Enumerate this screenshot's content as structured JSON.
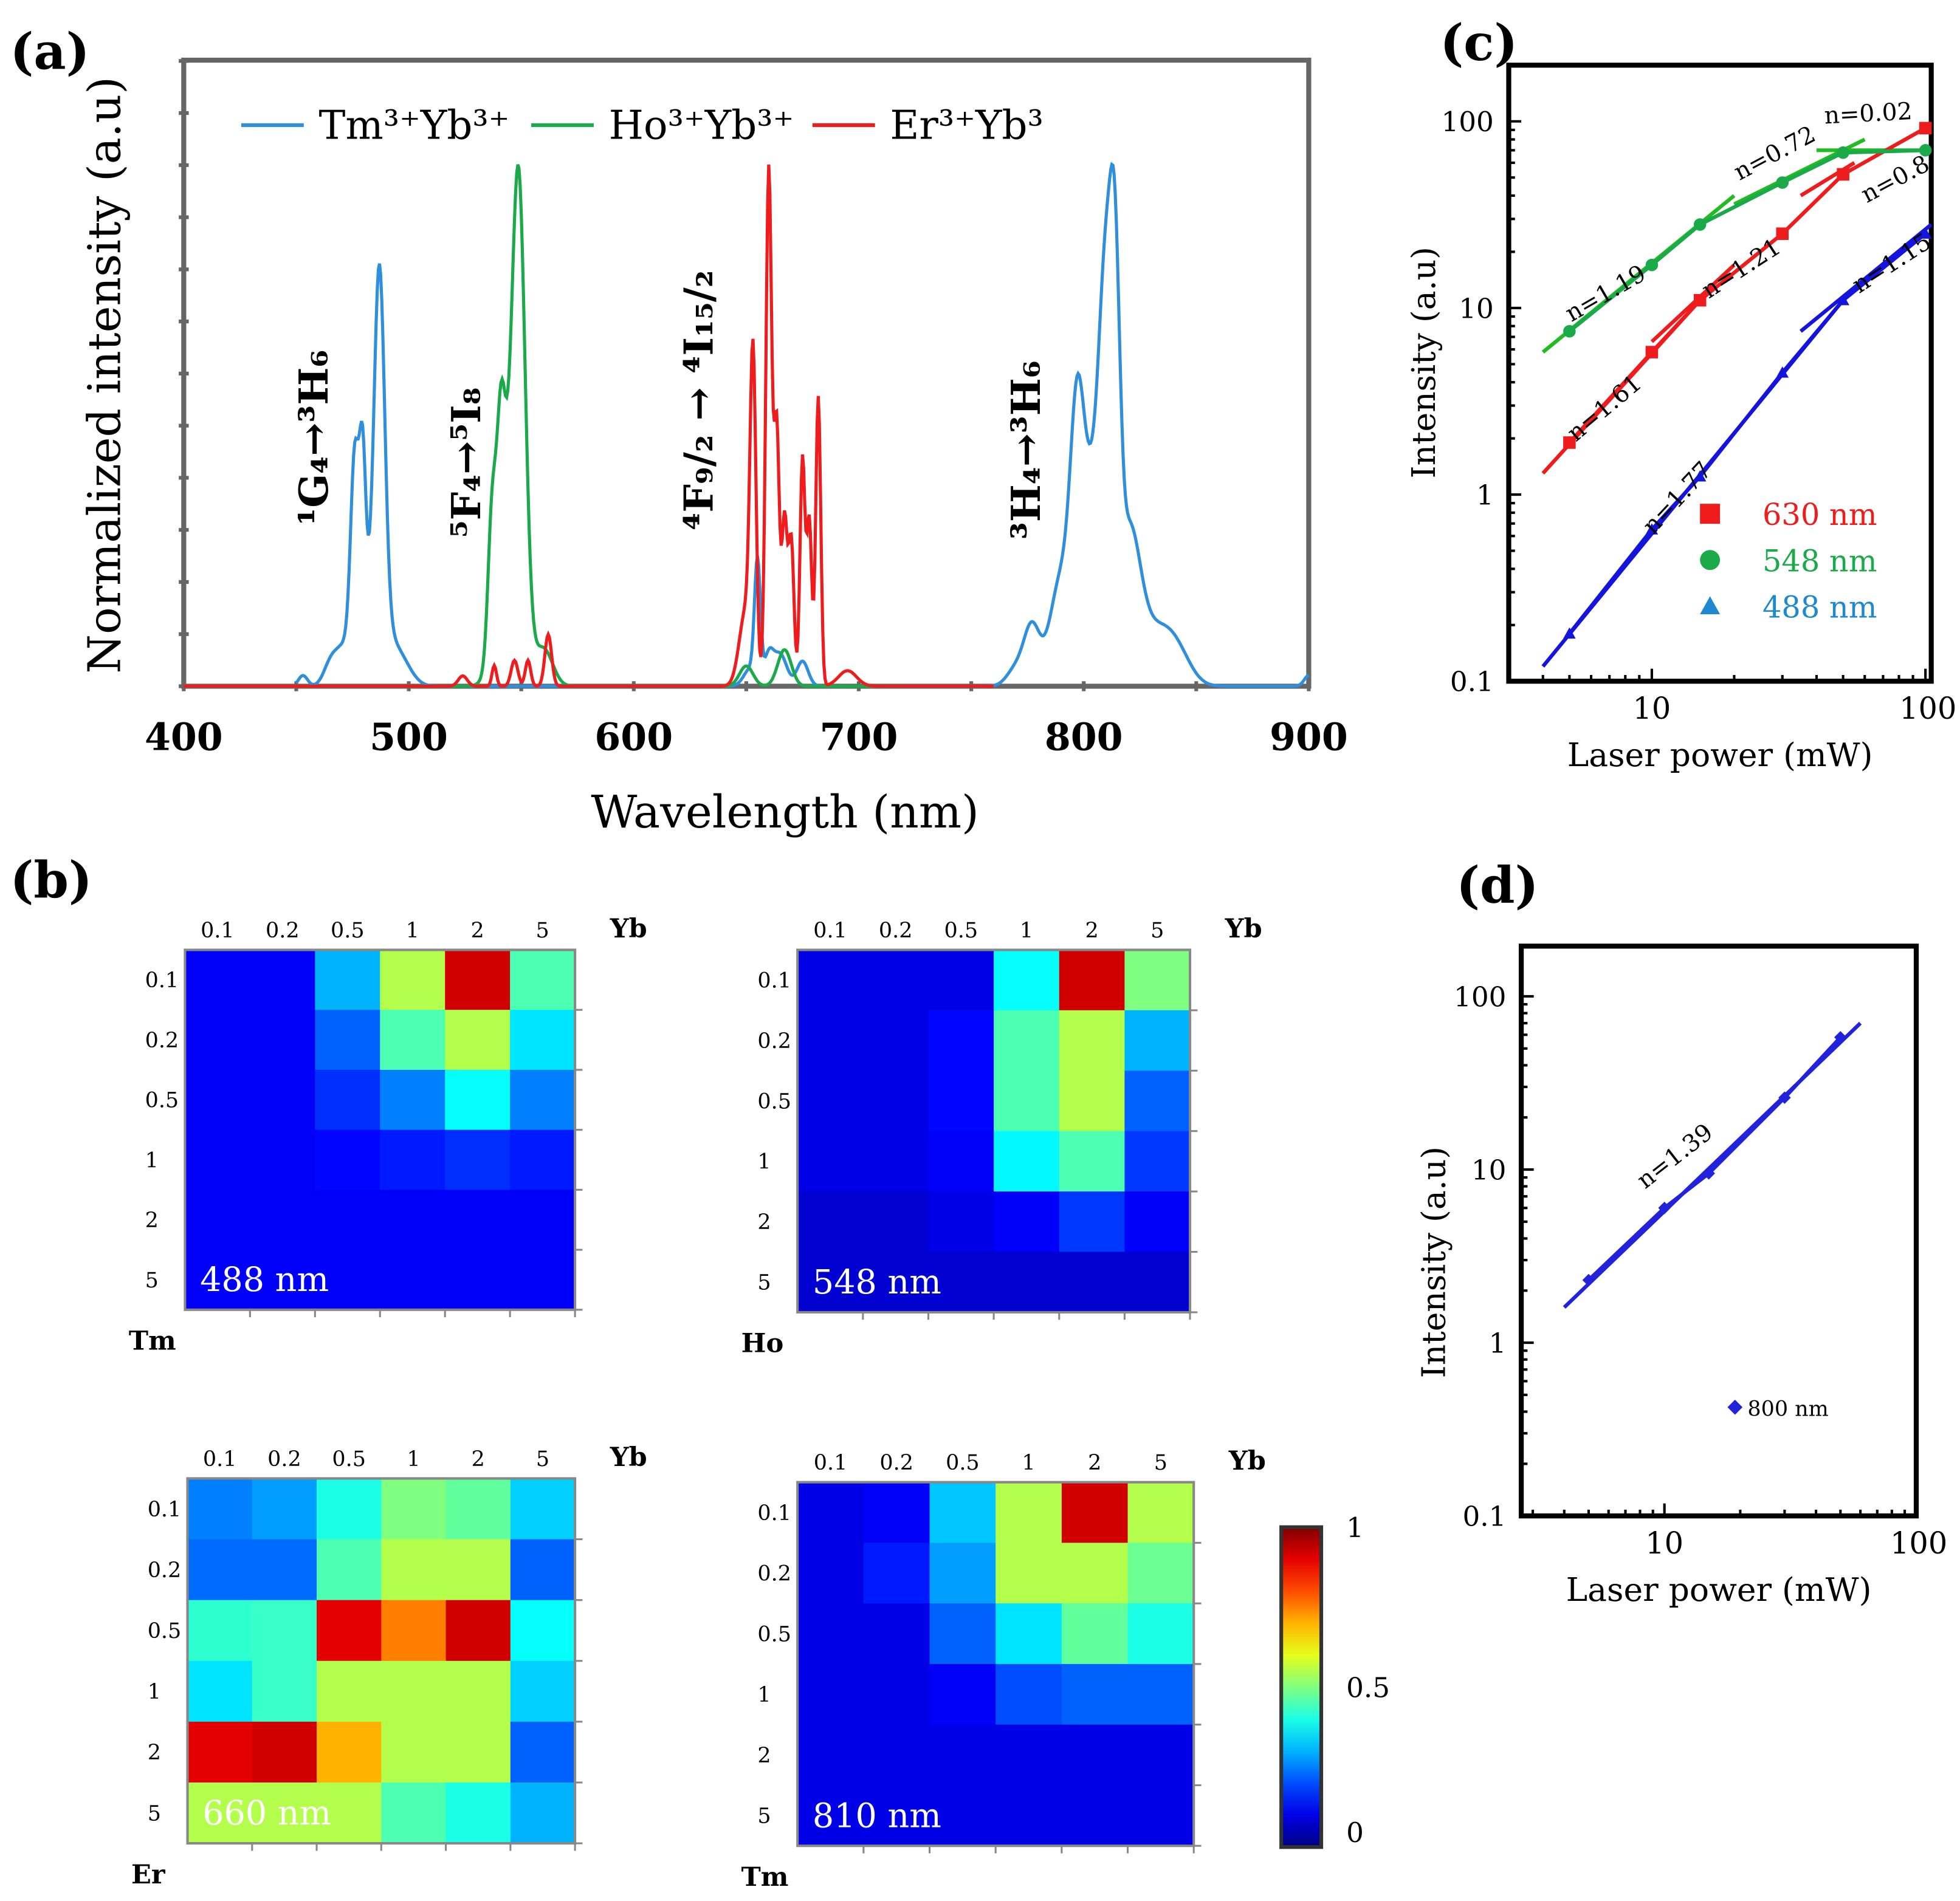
{
  "panel_labels": {
    "a": "(a)",
    "b": "(b)",
    "c": "(c)",
    "d": "(d)"
  },
  "chart_data": [
    {
      "id": "a",
      "type": "line",
      "title": "",
      "xlabel": "Wavelength (nm)",
      "ylabel": "Normalized intensity (a.u)",
      "xlim": [
        400,
        900
      ],
      "ylim": [
        0,
        1.2
      ],
      "xticks": [
        "400",
        "500",
        "600",
        "700",
        "800",
        "900"
      ],
      "grid": false,
      "legend_position": "top",
      "series": [
        {
          "name": "Tm³⁺Yb³⁺",
          "color": "#2f8fdc",
          "range": [
            450,
            900
          ],
          "peaks": [
            [
              453,
              0.03,
              2
            ],
            [
              465,
              0.05,
              3
            ],
            [
              471,
              0.09,
              4
            ],
            [
              476,
              0.52,
              1.8
            ],
            [
              479.5,
              0.45,
              1.4
            ],
            [
              487,
              0.95,
              2.3
            ],
            [
              484,
              0.25,
              6
            ],
            [
              496,
              0.07,
              5
            ],
            [
              652,
              0.05,
              3
            ],
            [
              655,
              0.33,
              1.3
            ],
            [
              660,
              0.08,
              2
            ],
            [
              665,
              0.09,
              3
            ],
            [
              675,
              0.07,
              2.5
            ],
            [
              770,
              0.05,
              4
            ],
            [
              777,
              0.16,
              3.5
            ],
            [
              790,
              0.3,
              5
            ],
            [
              797,
              0.55,
              3
            ],
            [
              804,
              0.55,
              5
            ],
            [
              810,
              0.85,
              3
            ],
            [
              814,
              0.75,
              2.2
            ],
            [
              820,
              0.4,
              5
            ],
            [
              832,
              0.15,
              8
            ],
            [
              842,
              0.06,
              6
            ],
            [
              900,
              0.03,
              2
            ]
          ]
        },
        {
          "name": "Ho³⁺Yb³⁺",
          "color": "#1aaa4a",
          "range": [
            400,
            720
          ],
          "peaks": [
            [
              537,
              0.33,
              1.8
            ],
            [
              541,
              0.38,
              1.8
            ],
            [
              549,
              0.95,
              2.8
            ],
            [
              545,
              0.45,
              5
            ],
            [
              560,
              0.09,
              4
            ],
            [
              650,
              0.05,
              3
            ],
            [
              667,
              0.09,
              3
            ]
          ]
        },
        {
          "name": "Er³⁺Yb³",
          "color": "#ee1c1c",
          "range": [
            400,
            760
          ],
          "peaks": [
            [
              524,
              0.02,
              2
            ],
            [
              538,
              0.04,
              1
            ],
            [
              547,
              0.05,
              1.5
            ],
            [
              553,
              0.05,
              1.2
            ],
            [
              562,
              0.1,
              1.5
            ],
            [
              650,
              0.15,
              3
            ],
            [
              653,
              0.58,
              1.3
            ],
            [
              660,
              1.0,
              1.3
            ],
            [
              663.5,
              0.5,
              1.2
            ],
            [
              667,
              0.32,
              1.2
            ],
            [
              670,
              0.28,
              1.2
            ],
            [
              675,
              0.44,
              1.1
            ],
            [
              678,
              0.32,
              1.1
            ],
            [
              682,
              0.56,
              1.1
            ],
            [
              695,
              0.03,
              4
            ]
          ]
        }
      ],
      "annotations": [
        "¹G₄→³H₆",
        "⁵F₄→⁵I₈",
        "⁴F₉/₂ → ⁴I₁₅/₂",
        "³H₄→³H₆"
      ]
    },
    {
      "id": "c",
      "type": "scatter",
      "xscale": "log",
      "yscale": "log",
      "xlabel": "Laser power (mW)",
      "ylabel": "Intensity (a.u)",
      "xlim": [
        3,
        105
      ],
      "ylim": [
        0.1,
        200
      ],
      "xticks": [
        "10",
        "100"
      ],
      "yticks": [
        "0.1",
        "1",
        "10",
        "100"
      ],
      "legend_position": "bottom-right",
      "series": [
        {
          "name": "630 nm",
          "color": "#ee1c1c",
          "marker": "square",
          "x": [
            5,
            10,
            15,
            30,
            50,
            100
          ],
          "y": [
            1.9,
            5.8,
            11,
            25,
            52,
            92
          ]
        },
        {
          "name": "548 nm",
          "color": "#1aaa4a",
          "marker": "circle",
          "x": [
            5,
            10,
            15,
            30,
            50,
            100
          ],
          "y": [
            7.5,
            17,
            28,
            47,
            68,
            70
          ]
        },
        {
          "name": "488 nm",
          "color": "#1e88d0",
          "marker": "triangle",
          "x": [
            5,
            10,
            15,
            30,
            50,
            100
          ],
          "y": [
            0.18,
            0.65,
            1.25,
            4.5,
            11,
            25
          ]
        }
      ],
      "fits": [
        {
          "label": "n=1.19",
          "color": "#22bb22",
          "from": [
            4,
            5.8
          ],
          "to": [
            20,
            40
          ]
        },
        {
          "label": "n=0.72",
          "color": "#22bb22",
          "from": [
            20,
            36
          ],
          "to": [
            60,
            80
          ]
        },
        {
          "label": "n=0.02",
          "color": "#22bb22",
          "from": [
            40,
            70
          ],
          "to": [
            105,
            70
          ]
        },
        {
          "label": "n=1.61",
          "color": "#ee1c1c",
          "from": [
            4,
            1.3
          ],
          "to": [
            15,
            11
          ]
        },
        {
          "label": "n=1.21",
          "color": "#ee1c1c",
          "from": [
            10,
            6.6
          ],
          "to": [
            20,
            17
          ]
        },
        {
          "label": "n=0.8",
          "color": "#ee1c1c",
          "from": [
            35,
            40
          ],
          "to": [
            55,
            60
          ]
        },
        {
          "label": "n=1.77",
          "color": "#1414dd",
          "from": [
            4,
            0.12
          ],
          "to": [
            50,
            11
          ]
        },
        {
          "label": "n=1.15",
          "color": "#1414dd",
          "from": [
            35,
            7.5
          ],
          "to": [
            105,
            28
          ]
        }
      ]
    },
    {
      "id": "d",
      "type": "scatter",
      "xscale": "log",
      "yscale": "log",
      "xlabel": "Laser power (mW)",
      "ylabel": "Intensity (a.u)",
      "xlim": [
        2.7,
        100
      ],
      "ylim": [
        0.1,
        195
      ],
      "xticks": [
        "10",
        "100"
      ],
      "yticks": [
        "0.1",
        "1",
        "10",
        "100"
      ],
      "legend_position": "bottom-right",
      "series": [
        {
          "name": "800 nm",
          "color": "#2222dd",
          "marker": "diamond",
          "x": [
            5,
            10,
            15,
            30,
            50
          ],
          "y": [
            2.3,
            6,
            9.5,
            26,
            58
          ]
        }
      ],
      "fits": [
        {
          "label": "n=1.39",
          "color": "#2222dd",
          "from": [
            4,
            1.6
          ],
          "to": [
            60,
            70
          ]
        }
      ]
    },
    {
      "id": "b",
      "type": "heatmap",
      "colormap": "jet",
      "colorbar": {
        "ticks": [
          "1",
          "0.5",
          "0"
        ],
        "range": [
          0,
          1
        ]
      },
      "cols": [
        "0.1",
        "0.2",
        "0.5",
        "1",
        "2",
        "5"
      ],
      "rows": [
        "0.1",
        "0.2",
        "0.5",
        "1",
        "2",
        "5"
      ],
      "col_axis": "Yb",
      "maps": [
        {
          "label": "488 nm",
          "row_axis": "Tm",
          "values": [
            [
              0.12,
              0.12,
              0.3,
              0.55,
              0.92,
              0.45
            ],
            [
              0.12,
              0.12,
              0.22,
              0.45,
              0.55,
              0.35
            ],
            [
              0.12,
              0.12,
              0.17,
              0.25,
              0.38,
              0.25
            ],
            [
              0.12,
              0.12,
              0.13,
              0.15,
              0.17,
              0.15
            ],
            [
              0.12,
              0.12,
              0.12,
              0.12,
              0.12,
              0.12
            ],
            [
              0.12,
              0.12,
              0.12,
              0.12,
              0.12,
              0.12
            ]
          ]
        },
        {
          "label": "548 nm",
          "row_axis": "Ho",
          "values": [
            [
              0.1,
              0.1,
              0.1,
              0.38,
              0.92,
              0.5
            ],
            [
              0.1,
              0.1,
              0.13,
              0.45,
              0.55,
              0.3
            ],
            [
              0.1,
              0.1,
              0.13,
              0.45,
              0.55,
              0.22
            ],
            [
              0.1,
              0.1,
              0.12,
              0.37,
              0.45,
              0.18
            ],
            [
              0.08,
              0.08,
              0.1,
              0.12,
              0.18,
              0.12
            ],
            [
              0.08,
              0.08,
              0.08,
              0.08,
              0.08,
              0.08
            ]
          ]
        },
        {
          "label": "660 nm",
          "row_axis": "Er",
          "values": [
            [
              0.25,
              0.28,
              0.4,
              0.5,
              0.47,
              0.33
            ],
            [
              0.23,
              0.23,
              0.45,
              0.55,
              0.55,
              0.22
            ],
            [
              0.42,
              0.43,
              0.9,
              0.75,
              0.92,
              0.38
            ],
            [
              0.35,
              0.43,
              0.55,
              0.55,
              0.55,
              0.33
            ],
            [
              0.9,
              0.92,
              0.7,
              0.55,
              0.55,
              0.22
            ],
            [
              0.55,
              0.55,
              0.55,
              0.45,
              0.4,
              0.3
            ]
          ]
        },
        {
          "label": "810 nm",
          "row_axis": "Tm",
          "values": [
            [
              0.1,
              0.12,
              0.32,
              0.55,
              0.92,
              0.55
            ],
            [
              0.1,
              0.15,
              0.28,
              0.55,
              0.55,
              0.48
            ],
            [
              0.1,
              0.1,
              0.22,
              0.35,
              0.47,
              0.4
            ],
            [
              0.1,
              0.1,
              0.12,
              0.2,
              0.22,
              0.22
            ],
            [
              0.1,
              0.1,
              0.1,
              0.1,
              0.1,
              0.1
            ],
            [
              0.1,
              0.1,
              0.1,
              0.1,
              0.1,
              0.1
            ]
          ]
        }
      ]
    }
  ]
}
